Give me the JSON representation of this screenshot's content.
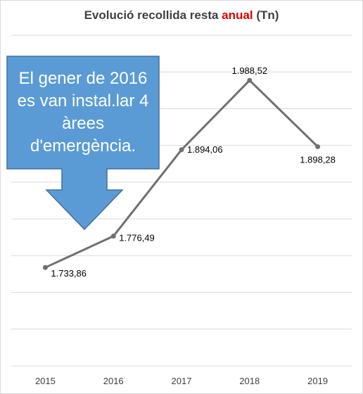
{
  "title": {
    "prefix": "Evolució recollida resta",
    "highlight": "anual",
    "suffix": "(Tn)",
    "highlight_color": "#e00000"
  },
  "callout": {
    "text": "El gener de 2016 es van instal.lar 4 àrees d'emergència.",
    "fill": "#5b9bd5",
    "stroke": "#41719c"
  },
  "chart_data": {
    "type": "line",
    "categories": [
      "2015",
      "2016",
      "2017",
      "2018",
      "2019"
    ],
    "values": [
      1733.86,
      1776.49,
      1894.06,
      1988.52,
      1898.28
    ],
    "value_labels": [
      "1.733,86",
      "1.776,49",
      "1.894,06",
      "1.988,52",
      "1.898,28"
    ],
    "ylim": [
      1600,
      2050
    ],
    "grid": true,
    "line_color": "#707070",
    "gridline_color": "#d9d9d9"
  }
}
